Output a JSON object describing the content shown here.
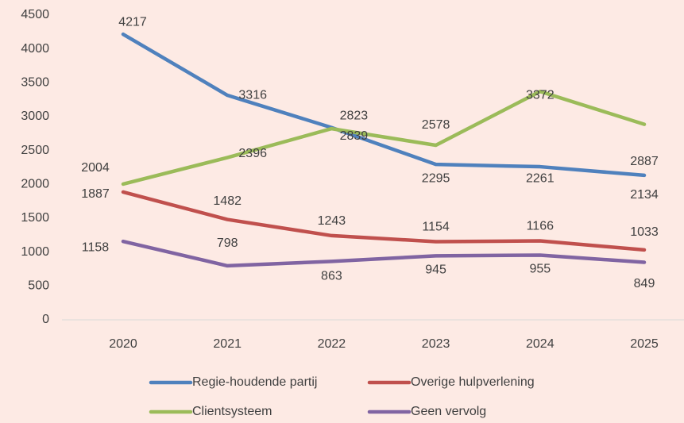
{
  "chart_data": {
    "type": "line",
    "categories": [
      "2020",
      "2021",
      "2022",
      "2023",
      "2024",
      "2025"
    ],
    "series": [
      {
        "name": "Regie-houdende partij",
        "color": "#4f81bd",
        "values": [
          4217,
          3316,
          2839,
          2295,
          2261,
          2134
        ]
      },
      {
        "name": "Overige hulpverlening",
        "color": "#c0504d",
        "values": [
          1887,
          1482,
          1243,
          1154,
          1166,
          1033
        ]
      },
      {
        "name": "Clientsysteem",
        "color": "#9bbb59",
        "values": [
          2004,
          2396,
          2823,
          2578,
          3372,
          2887
        ]
      },
      {
        "name": "Geen vervolg",
        "color": "#8064a2",
        "values": [
          1158,
          798,
          863,
          945,
          955,
          849
        ]
      }
    ],
    "ylim": [
      0,
      4500
    ],
    "yticks": [
      0,
      500,
      1000,
      1500,
      2000,
      2500,
      3000,
      3500,
      4000,
      4500
    ],
    "grid": false,
    "data_labels": true,
    "legend": "bottom"
  }
}
